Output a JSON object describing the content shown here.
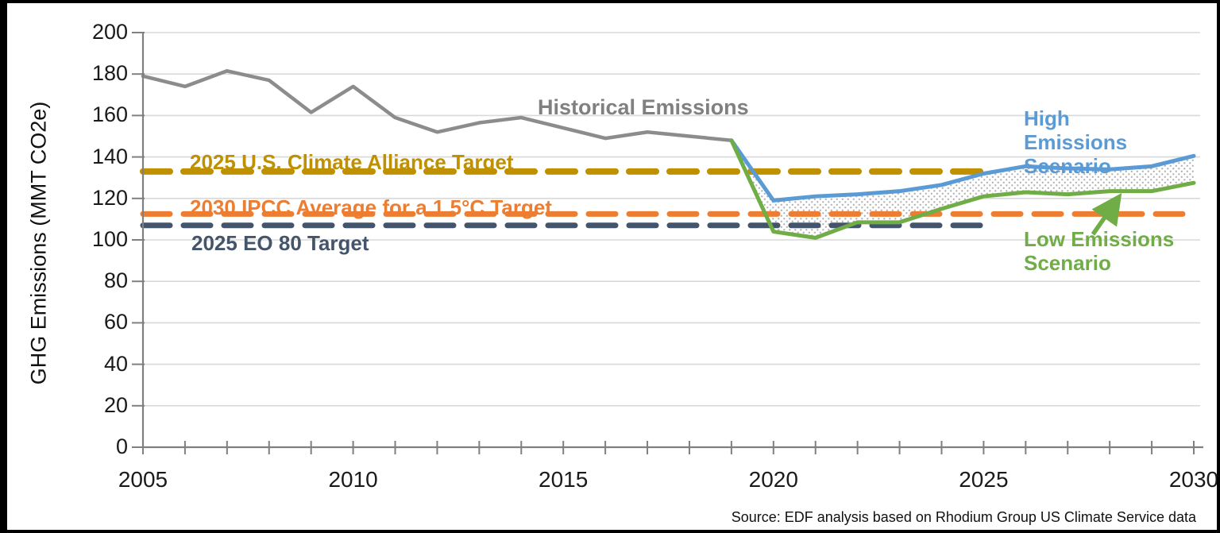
{
  "source_note": "Source: EDF analysis based on Rhodium Group US Climate Service data",
  "chart_data": {
    "type": "line",
    "y_axis_title": "GHG Emissions (MMT CO2e)",
    "ylim": [
      0,
      200
    ],
    "y_tick_step": 20,
    "y_tick_labels": [
      "0",
      "20",
      "40",
      "60",
      "80",
      "100",
      "120",
      "140",
      "160",
      "180",
      "200"
    ],
    "xlim": [
      2005,
      2030
    ],
    "x_tick_labels": [
      "2005",
      "2010",
      "2015",
      "2020",
      "2025",
      "2030"
    ],
    "grid": "horizontal",
    "band": {
      "between": [
        "High Emissions Scenario",
        "Low Emissions Scenario"
      ],
      "style": "gray-stipple"
    },
    "series": [
      {
        "name": "Historical Emissions",
        "color": "#8C8C8C",
        "width": 4.5,
        "years": [
          2005,
          2006,
          2007,
          2008,
          2009,
          2010,
          2011,
          2012,
          2013,
          2014,
          2015,
          2016,
          2017,
          2018,
          2019
        ],
        "values": [
          179,
          174,
          181.5,
          177,
          161.5,
          174,
          159,
          152,
          156.5,
          159,
          154,
          149,
          152,
          150,
          148
        ]
      },
      {
        "name": "High Emissions Scenario",
        "color": "#5B9BD5",
        "width": 5,
        "years": [
          2019,
          2020,
          2021,
          2022,
          2023,
          2024,
          2025,
          2026,
          2027,
          2028,
          2029,
          2030
        ],
        "values": [
          148,
          119,
          121,
          122,
          123.5,
          126.5,
          132,
          135.5,
          134.5,
          134,
          135.5,
          140.5
        ]
      },
      {
        "name": "Low Emissions Scenario",
        "color": "#70AD47",
        "width": 5,
        "years": [
          2019,
          2020,
          2021,
          2022,
          2023,
          2024,
          2025,
          2026,
          2027,
          2028,
          2029,
          2030
        ],
        "values": [
          148,
          104,
          101,
          108.5,
          108.5,
          115,
          121,
          123,
          122,
          123.5,
          123.5,
          127.5
        ]
      }
    ],
    "targets": [
      {
        "name": "2025 U.S. Climate Alliance Target",
        "value": 133,
        "color": "#BF9000",
        "end_year": 2025,
        "thickness": 8
      },
      {
        "name": "2030 IPCC Average for a 1.5°C Target",
        "value": 112.5,
        "color": "#ED7D31",
        "end_year": 2030,
        "thickness": 7
      },
      {
        "name": "2025 EO 80 Target",
        "value": 107,
        "color": "#44546A",
        "end_year": 2025,
        "thickness": 7
      }
    ],
    "annotation_arrow": {
      "from": [
        1371,
        291
      ],
      "to": [
        1401,
        248
      ],
      "color": "#70AD47"
    }
  }
}
